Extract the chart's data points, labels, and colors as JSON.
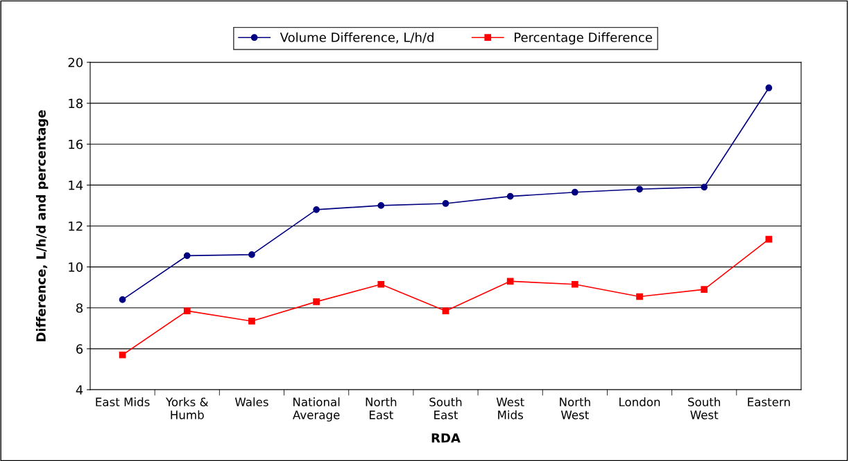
{
  "chart_data": {
    "type": "line",
    "xlabel": "RDA",
    "ylabel": "Difference, L/h/d and percentage",
    "categories": [
      "East Mids",
      "Yorks &\nHumb",
      "Wales",
      "National\nAverage",
      "North\nEast",
      "South\nEast",
      "West\nMids",
      "North\nWest",
      "London",
      "South\nWest",
      "Eastern"
    ],
    "series": [
      {
        "name": "Volume Difference, L/h/d",
        "color": "#000080",
        "marker": "circle",
        "values": [
          8.4,
          10.55,
          10.6,
          12.8,
          13.0,
          13.1,
          13.45,
          13.65,
          13.8,
          13.9,
          18.75
        ]
      },
      {
        "name": "Percentage Difference",
        "color": "#ff0000",
        "marker": "square",
        "values": [
          5.7,
          7.85,
          7.35,
          8.3,
          9.15,
          7.85,
          9.3,
          9.15,
          8.55,
          8.9,
          11.35
        ]
      }
    ],
    "ylim": [
      4,
      20
    ],
    "yticks": [
      4,
      6,
      8,
      10,
      12,
      14,
      16,
      18,
      20
    ],
    "grid": "y",
    "legend": "top",
    "line_style": "solid"
  }
}
